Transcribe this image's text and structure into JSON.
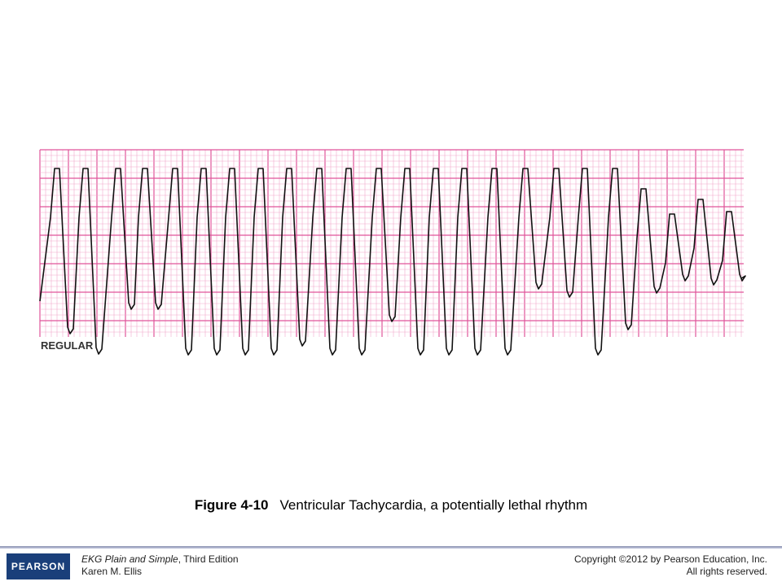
{
  "figure": {
    "strip_label": "REGULAR",
    "number": "Figure 4-10",
    "caption": "Ventricular Tachycardia, a potentially lethal rhythm"
  },
  "footer": {
    "logo": "PEARSON",
    "book_title": "EKG Plain and Simple",
    "edition": ", Third Edition",
    "author": "Karen M. Ellis",
    "copyright": "Copyright ©2012 by Pearson Education, Inc.",
    "rights": "All rights reserved."
  }
}
